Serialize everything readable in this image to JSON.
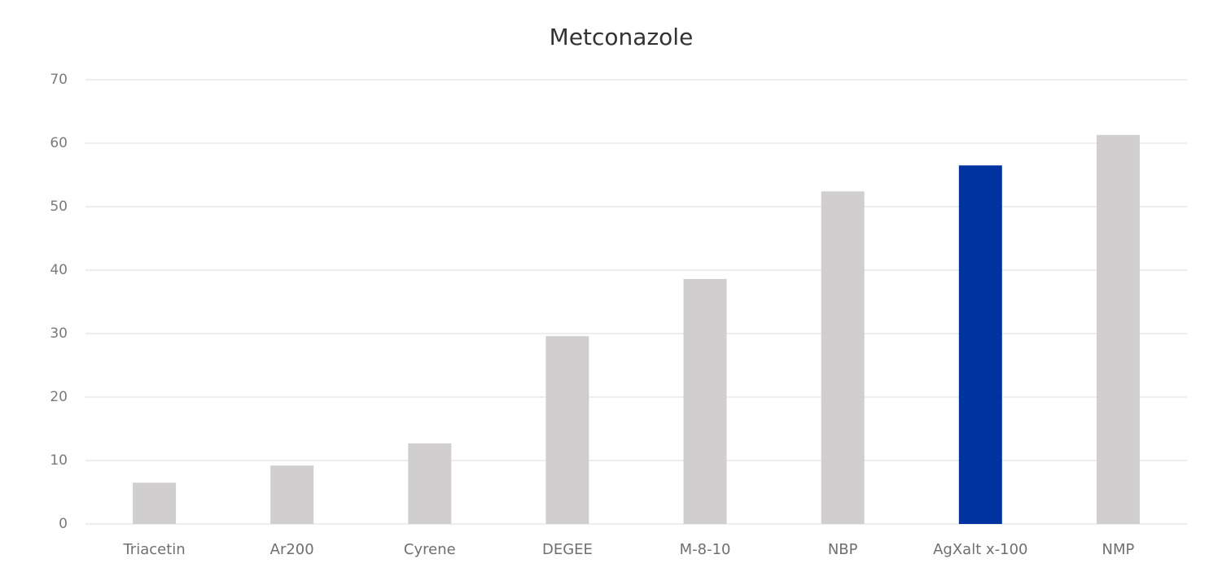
{
  "chart_data": {
    "type": "bar",
    "title": "Metconazole",
    "categories": [
      "Triacetin",
      "Ar200",
      "Cyrene",
      "DEGEE",
      "M-8-10",
      "NBP",
      "AgXalt x-100",
      "NMP"
    ],
    "values": [
      6.5,
      9.2,
      12.7,
      29.6,
      38.6,
      52.4,
      56.5,
      61.3
    ],
    "colors": [
      "#d0cece",
      "#d0cece",
      "#d0cece",
      "#d0cece",
      "#d0cece",
      "#d0cece",
      "#0033a0",
      "#d0cece"
    ],
    "ylim": [
      0,
      70
    ],
    "yticks": [
      0,
      10,
      20,
      30,
      40,
      50,
      60,
      70
    ],
    "grid": true
  }
}
